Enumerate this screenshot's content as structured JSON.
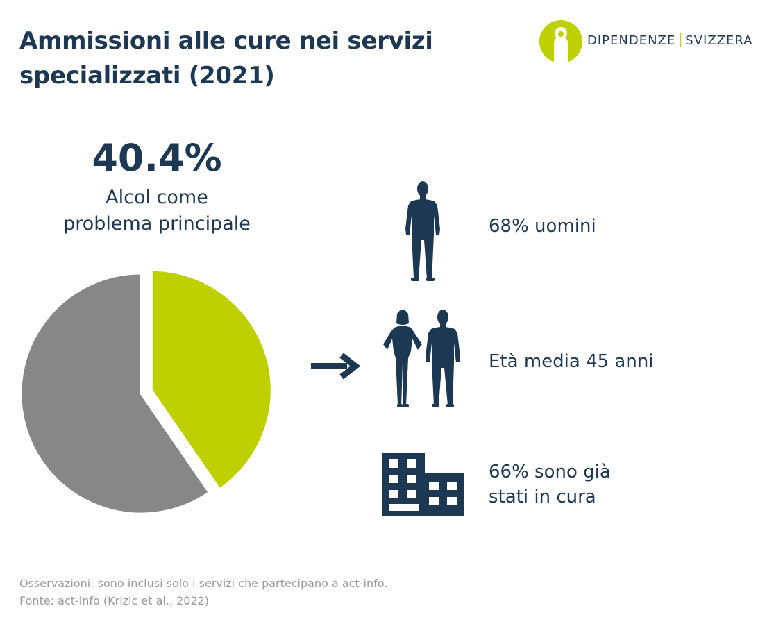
{
  "title": "Ammissioni alle cure nei servizi specializzati (2021)",
  "logo": {
    "left_text": "DIPENDENZE",
    "right_text": "SVIZZERA",
    "icon": "person-in-circle-icon",
    "color": "#bfd000"
  },
  "highlight": {
    "value": "40.4%",
    "label_line1": "Alcol come",
    "label_line2": "problema principale"
  },
  "chart_data": {
    "type": "pie",
    "slices": [
      {
        "label": "Alcol come problema principale",
        "value": 40.4,
        "color": "#bfd000",
        "exploded": true
      },
      {
        "label": "",
        "value": 59.6,
        "color": "#878787"
      }
    ]
  },
  "stats": [
    {
      "icon": "man-silhouette-icon",
      "line1": "68% uomini"
    },
    {
      "icon": "couple-silhouette-icon",
      "line1": "Età media 45 anni"
    },
    {
      "icon": "building-icon",
      "line1": "66% sono già",
      "line2": "stati in cura"
    }
  ],
  "notes": {
    "line1": "Osservazioni: sono inclusi solo i servizi che partecipano a act-info.",
    "line2": "Fonte: act-info (Krizic et al., 2022)"
  },
  "colors": {
    "navy": "#1d3852",
    "accent": "#bfd000",
    "grey": "#878787",
    "note": "#9a9a9a"
  }
}
